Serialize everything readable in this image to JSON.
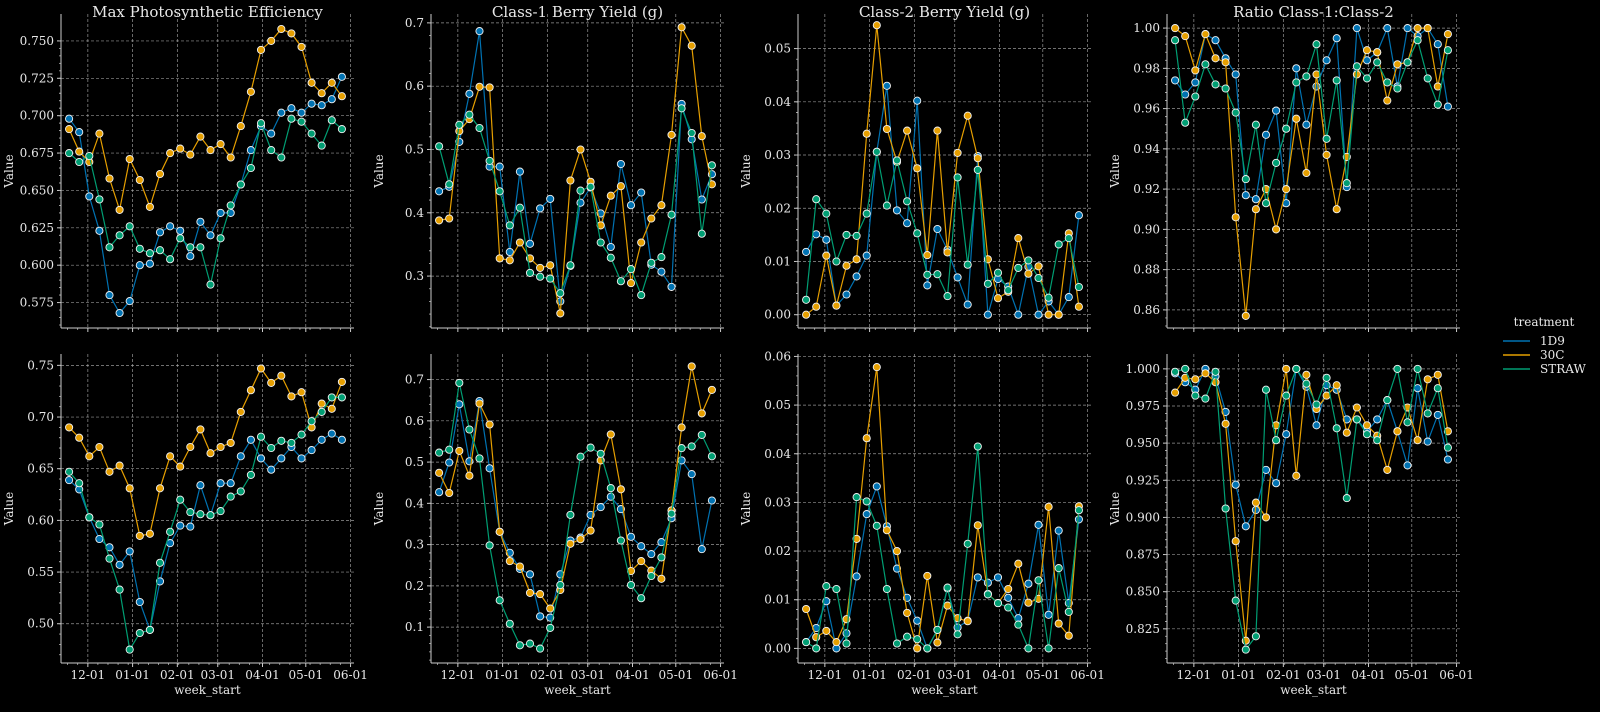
{
  "legend": {
    "title": "treatment",
    "entries": [
      {
        "name": "1D9",
        "color": "#0072B2"
      },
      {
        "name": "30C",
        "color": "#E69F00"
      },
      {
        "name": "STRAW",
        "color": "#009E73"
      }
    ]
  },
  "chart_data": [
    {
      "type": "line",
      "title": "Max Photosynthetic Efficiency",
      "xlabel": "",
      "ylabel": "Value",
      "row": 0,
      "col": 0,
      "x_ticks": [
        "12-01",
        "01-01",
        "02-01",
        "03-01",
        "04-01",
        "05-01",
        "06-01"
      ],
      "ylim": [
        0.558,
        0.768
      ],
      "y_ticks": [
        0.575,
        0.6,
        0.625,
        0.65,
        0.675,
        0.7,
        0.725,
        0.75
      ],
      "y_fmt": 3,
      "series": [
        {
          "name": "1D9",
          "values": [
            0.698,
            0.689,
            0.646,
            0.623,
            0.58,
            0.568,
            0.576,
            0.6,
            0.601,
            0.622,
            0.626,
            0.623,
            0.606,
            0.629,
            0.62,
            0.635,
            0.635,
            0.654,
            0.677,
            0.693,
            0.688,
            0.702,
            0.705,
            0.702,
            0.708,
            0.707,
            0.711,
            0.726
          ]
        },
        {
          "name": "30C",
          "values": [
            0.691,
            0.676,
            0.669,
            0.688,
            0.658,
            0.637,
            0.671,
            0.657,
            0.639,
            0.661,
            0.675,
            0.678,
            0.674,
            0.686,
            0.677,
            0.681,
            0.672,
            0.693,
            0.716,
            0.744,
            0.75,
            0.758,
            0.755,
            0.746,
            0.722,
            0.715,
            0.722,
            0.713
          ]
        },
        {
          "name": "STRAW",
          "values": [
            0.675,
            0.669,
            0.673,
            0.644,
            0.612,
            0.62,
            0.626,
            0.611,
            0.608,
            0.61,
            0.604,
            0.618,
            0.612,
            0.612,
            0.587,
            0.618,
            0.64,
            0.654,
            0.665,
            0.695,
            0.677,
            0.672,
            0.698,
            0.696,
            0.688,
            0.68,
            0.697,
            0.691
          ]
        }
      ]
    },
    {
      "type": "line",
      "title": "Class-1 Berry Yield (g)",
      "xlabel": "",
      "ylabel": "Value",
      "row": 0,
      "col": 1,
      "x_ticks": [
        "12-01",
        "01-01",
        "02-01",
        "03-01",
        "04-01",
        "05-01",
        "06-01"
      ],
      "ylim": [
        0.218,
        0.714
      ],
      "y_ticks": [
        0.3,
        0.4,
        0.5,
        0.6,
        0.7
      ],
      "y_fmt": 1,
      "series": [
        {
          "name": "1D9",
          "values": [
            0.434,
            0.441,
            0.512,
            0.588,
            0.687,
            0.473,
            0.473,
            0.338,
            0.465,
            0.351,
            0.407,
            0.422,
            0.26,
            0.316,
            0.416,
            0.44,
            0.399,
            0.346,
            0.477,
            0.412,
            0.432,
            0.318,
            0.307,
            0.283,
            0.572,
            0.516,
            0.421,
            0.461
          ]
        },
        {
          "name": "30C",
          "values": [
            0.388,
            0.391,
            0.529,
            0.548,
            0.599,
            0.598,
            0.328,
            0.325,
            0.353,
            0.328,
            0.313,
            0.317,
            0.241,
            0.451,
            0.5,
            0.449,
            0.38,
            0.427,
            0.442,
            0.289,
            0.353,
            0.391,
            0.412,
            0.523,
            0.693,
            0.664,
            0.521,
            0.445
          ]
        },
        {
          "name": "STRAW",
          "values": [
            0.505,
            0.445,
            0.539,
            0.555,
            0.534,
            0.482,
            0.434,
            0.38,
            0.408,
            0.305,
            0.299,
            0.296,
            0.273,
            0.317,
            0.435,
            0.441,
            0.353,
            0.329,
            0.292,
            0.311,
            0.27,
            0.321,
            0.33,
            0.397,
            0.565,
            0.526,
            0.367,
            0.475
          ]
        }
      ]
    },
    {
      "type": "line",
      "title": "Class-2 Berry Yield (g)",
      "xlabel": "",
      "ylabel": "Value",
      "row": 0,
      "col": 2,
      "x_ticks": [
        "12-01",
        "01-01",
        "02-01",
        "03-01",
        "04-01",
        "05-01",
        "06-01"
      ],
      "ylim": [
        -0.0025,
        0.0565
      ],
      "y_ticks": [
        0.0,
        0.01,
        0.02,
        0.03,
        0.04,
        0.05
      ],
      "y_fmt": 2,
      "series": [
        {
          "name": "1D9",
          "values": [
            0.0118,
            0.0151,
            0.0141,
            0.0017,
            0.0038,
            0.0072,
            0.0111,
            0.0306,
            0.043,
            0.0196,
            0.0172,
            0.0402,
            0.0055,
            0.0161,
            0.0122,
            0.007,
            0.0019,
            0.0298,
            0.0,
            0.0067,
            0.0053,
            0.0,
            0.009,
            0.0,
            0.0025,
            0.0,
            0.0033,
            0.0187
          ]
        },
        {
          "name": "30C",
          "values": [
            0.0,
            0.0015,
            0.0111,
            0.0017,
            0.0092,
            0.0104,
            0.034,
            0.0544,
            0.0349,
            0.0287,
            0.0346,
            0.0275,
            0.0112,
            0.0346,
            0.0117,
            0.0304,
            0.0374,
            0.0294,
            0.0104,
            0.0031,
            0.0043,
            0.0144,
            0.0077,
            0.0091,
            0.0,
            0.0,
            0.0153,
            0.0015
          ]
        },
        {
          "name": "STRAW",
          "values": [
            0.0028,
            0.0217,
            0.019,
            0.01,
            0.015,
            0.0148,
            0.019,
            0.0306,
            0.0205,
            0.029,
            0.0213,
            0.0153,
            0.0075,
            0.0076,
            0.0035,
            0.0258,
            0.0094,
            0.0272,
            0.0058,
            0.0079,
            0.0046,
            0.0088,
            0.0102,
            0.0069,
            0.0032,
            0.0132,
            0.0144,
            0.0052
          ]
        }
      ]
    },
    {
      "type": "line",
      "title": "Ratio Class-1:Class-2",
      "xlabel": "",
      "ylabel": "Value",
      "row": 0,
      "col": 3,
      "x_ticks": [
        "12-01",
        "01-01",
        "02-01",
        "03-01",
        "04-01",
        "05-01",
        "06-01"
      ],
      "ylim": [
        0.851,
        1.007
      ],
      "y_ticks": [
        0.86,
        0.88,
        0.9,
        0.92,
        0.94,
        0.96,
        0.98,
        1.0
      ],
      "y_fmt": 2,
      "series": [
        {
          "name": "1D9",
          "values": [
            0.974,
            0.967,
            0.973,
            0.997,
            0.994,
            0.985,
            0.977,
            0.917,
            0.915,
            0.947,
            0.959,
            0.913,
            0.98,
            0.952,
            0.971,
            0.984,
            0.995,
            0.921,
            1.0,
            0.984,
            0.988,
            1.0,
            0.971,
            1.0,
            0.996,
            1.0,
            0.992,
            0.961
          ]
        },
        {
          "name": "30C",
          "values": [
            1.0,
            0.996,
            0.979,
            0.997,
            0.985,
            0.983,
            0.906,
            0.857,
            0.91,
            0.92,
            0.9,
            0.92,
            0.955,
            0.928,
            0.977,
            0.937,
            0.91,
            0.936,
            0.977,
            0.989,
            0.988,
            0.964,
            0.982,
            0.983,
            1.0,
            1.0,
            0.971,
            0.997
          ]
        },
        {
          "name": "STRAW",
          "values": [
            0.994,
            0.953,
            0.966,
            0.982,
            0.972,
            0.97,
            0.958,
            0.925,
            0.952,
            0.913,
            0.933,
            0.95,
            0.973,
            0.976,
            0.992,
            0.945,
            0.974,
            0.923,
            0.981,
            0.975,
            0.983,
            0.973,
            0.97,
            0.983,
            0.994,
            0.975,
            0.962,
            0.989
          ]
        }
      ]
    },
    {
      "type": "line",
      "title": "",
      "xlabel": "week_start",
      "ylabel": "Value",
      "row": 1,
      "col": 0,
      "x_ticks": [
        "12-01",
        "01-01",
        "02-01",
        "03-01",
        "04-01",
        "05-01",
        "06-01"
      ],
      "ylim": [
        0.462,
        0.761
      ],
      "y_ticks": [
        0.5,
        0.55,
        0.6,
        0.65,
        0.7,
        0.75
      ],
      "y_fmt": 2,
      "series": [
        {
          "name": "1D9",
          "values": [
            0.639,
            0.63,
            0.603,
            0.582,
            0.574,
            0.557,
            0.57,
            0.521,
            0.494,
            0.541,
            0.578,
            0.595,
            0.594,
            0.634,
            0.605,
            0.636,
            0.636,
            0.662,
            0.678,
            0.66,
            0.649,
            0.66,
            0.671,
            0.66,
            0.668,
            0.678,
            0.684,
            0.678
          ]
        },
        {
          "name": "30C",
          "values": [
            0.69,
            0.68,
            0.662,
            0.671,
            0.647,
            0.653,
            0.631,
            0.585,
            0.587,
            0.631,
            0.662,
            0.652,
            0.671,
            0.688,
            0.665,
            0.671,
            0.675,
            0.705,
            0.726,
            0.747,
            0.733,
            0.74,
            0.72,
            0.724,
            0.69,
            0.713,
            0.708,
            0.734
          ]
        },
        {
          "name": "STRAW",
          "values": [
            0.647,
            0.636,
            0.603,
            0.596,
            0.563,
            0.533,
            0.475,
            0.491,
            0.494,
            0.559,
            0.589,
            0.62,
            0.608,
            0.606,
            0.605,
            0.609,
            0.623,
            0.628,
            0.644,
            0.681,
            0.67,
            0.677,
            0.675,
            0.683,
            0.696,
            0.705,
            0.719,
            0.719
          ]
        }
      ]
    },
    {
      "type": "line",
      "title": "",
      "xlabel": "week_start",
      "ylabel": "Value",
      "row": 1,
      "col": 1,
      "x_ticks": [
        "12-01",
        "01-01",
        "02-01",
        "03-01",
        "04-01",
        "05-01",
        "06-01"
      ],
      "ylim": [
        0.013,
        0.762
      ],
      "y_ticks": [
        0.1,
        0.2,
        0.3,
        0.4,
        0.5,
        0.6,
        0.7
      ],
      "y_fmt": 1,
      "series": [
        {
          "name": "1D9",
          "values": [
            0.427,
            0.499,
            0.64,
            0.502,
            0.648,
            0.485,
            0.331,
            0.28,
            0.241,
            0.228,
            0.126,
            0.123,
            0.228,
            0.31,
            0.317,
            0.372,
            0.391,
            0.416,
            0.386,
            0.319,
            0.296,
            0.277,
            0.306,
            0.364,
            0.504,
            0.471,
            0.289,
            0.407
          ]
        },
        {
          "name": "30C",
          "values": [
            0.474,
            0.425,
            0.527,
            0.467,
            0.642,
            0.591,
            0.331,
            0.26,
            0.247,
            0.183,
            0.18,
            0.145,
            0.19,
            0.302,
            0.313,
            0.334,
            0.504,
            0.567,
            0.434,
            0.236,
            0.26,
            0.237,
            0.217,
            0.383,
            0.584,
            0.732,
            0.618,
            0.675
          ]
        },
        {
          "name": "STRAW",
          "values": [
            0.523,
            0.53,
            0.692,
            0.579,
            0.509,
            0.298,
            0.165,
            0.108,
            0.056,
            0.06,
            0.048,
            0.098,
            0.202,
            0.372,
            0.513,
            0.535,
            0.52,
            0.437,
            0.31,
            0.202,
            0.17,
            0.224,
            0.269,
            0.375,
            0.534,
            0.538,
            0.566,
            0.514
          ]
        }
      ]
    },
    {
      "type": "line",
      "title": "",
      "xlabel": "week_start",
      "ylabel": "Value",
      "row": 1,
      "col": 2,
      "x_ticks": [
        "12-01",
        "01-01",
        "02-01",
        "03-01",
        "04-01",
        "05-01",
        "06-01"
      ],
      "ylim": [
        -0.003,
        0.0605
      ],
      "y_ticks": [
        0.0,
        0.01,
        0.02,
        0.03,
        0.04,
        0.05,
        0.06
      ],
      "y_fmt": 2,
      "series": [
        {
          "name": "1D9",
          "values": [
            0.0013,
            0.0042,
            0.0097,
            0.0,
            0.0031,
            0.0148,
            0.0276,
            0.0333,
            0.0251,
            0.0164,
            0.0104,
            0.0057,
            0.0,
            0.0038,
            0.0123,
            0.0043,
            0.0057,
            0.0146,
            0.0135,
            0.0146,
            0.0104,
            0.0062,
            0.0133,
            0.0254,
            0.0069,
            0.0242,
            0.0093,
            0.0265
          ]
        },
        {
          "name": "30C",
          "values": [
            0.0081,
            0.0023,
            0.0036,
            0.0013,
            0.006,
            0.0225,
            0.0432,
            0.0578,
            0.0243,
            0.02,
            0.0073,
            0.0,
            0.0149,
            0.0012,
            0.0088,
            0.0062,
            0.0056,
            0.0253,
            0.0112,
            0.0093,
            0.0122,
            0.0174,
            0.0094,
            0.0102,
            0.0291,
            0.0051,
            0.0026,
            0.0292
          ]
        },
        {
          "name": "STRAW",
          "values": [
            0.0013,
            0.0,
            0.0128,
            0.0122,
            0.001,
            0.0311,
            0.0302,
            0.0252,
            0.0122,
            0.001,
            0.0024,
            0.0019,
            0.0,
            0.0038,
            0.0125,
            0.0029,
            0.0215,
            0.0415,
            0.0111,
            0.0093,
            0.0084,
            0.0049,
            0.0,
            0.014,
            0.0,
            0.0165,
            0.0075,
            0.0284
          ]
        }
      ]
    },
    {
      "type": "line",
      "title": "",
      "xlabel": "week_start",
      "ylabel": "Value",
      "row": 1,
      "col": 3,
      "x_ticks": [
        "12-01",
        "01-01",
        "02-01",
        "03-01",
        "04-01",
        "05-01",
        "06-01"
      ],
      "ylim": [
        0.802,
        1.01
      ],
      "y_ticks": [
        0.825,
        0.85,
        0.875,
        0.9,
        0.925,
        0.95,
        0.975,
        1.0
      ],
      "y_fmt": 3,
      "series": [
        {
          "name": "1D9",
          "values": [
            0.997,
            0.991,
            0.986,
            1.0,
            0.995,
            0.971,
            0.922,
            0.894,
            0.905,
            0.932,
            0.923,
            0.956,
            1.0,
            0.988,
            0.962,
            0.989,
            0.986,
            0.966,
            0.966,
            0.958,
            0.966,
            0.979,
            0.958,
            0.935,
            0.987,
            0.951,
            0.969,
            0.939
          ]
        },
        {
          "name": "30C",
          "values": [
            0.984,
            0.994,
            0.993,
            0.997,
            0.991,
            0.963,
            0.884,
            0.817,
            0.91,
            0.9,
            0.962,
            1.0,
            0.928,
            0.996,
            0.973,
            0.982,
            0.989,
            0.957,
            0.974,
            0.962,
            0.955,
            0.932,
            0.958,
            0.974,
            0.952,
            0.993,
            0.996,
            0.958
          ]
        },
        {
          "name": "STRAW",
          "values": [
            0.998,
            1.0,
            0.982,
            0.98,
            0.998,
            0.906,
            0.844,
            0.811,
            0.82,
            0.986,
            0.952,
            0.982,
            1.0,
            0.99,
            0.976,
            0.994,
            0.96,
            0.913,
            0.966,
            0.956,
            0.952,
            0.979,
            1.0,
            0.964,
            1.0,
            0.97,
            0.987,
            0.947
          ]
        }
      ]
    }
  ]
}
